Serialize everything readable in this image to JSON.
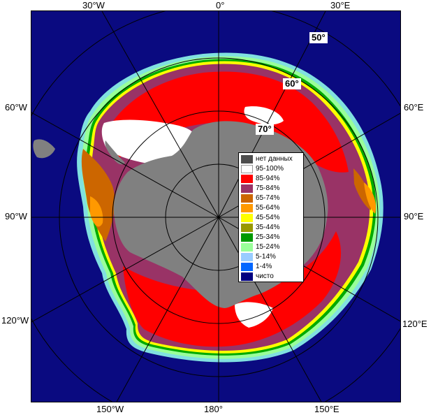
{
  "map": {
    "lon_labels": {
      "w30": "30°W",
      "zero": "0°",
      "e30": "30°E",
      "w60": "60°W",
      "e60": "60°E",
      "w90": "90°W",
      "e90": "90°E",
      "w120": "120°W",
      "e120": "120°E",
      "w150": "150°W",
      "lon180": "180°",
      "e150": "150°E"
    },
    "lat_labels": {
      "lat50": "50°",
      "lat60": "60°",
      "lat70": "70°"
    },
    "colors": {
      "ocean": "#0a0a80",
      "land_gray": "#808080",
      "ice_white": "#ffffff",
      "ice_red": "#ff0000",
      "ice_purple": "#993366",
      "ice_brown": "#cc6600",
      "ice_orange": "#ff9900",
      "edge_yellow": "#ffff00",
      "edge_green": "#00aa00",
      "edge_mint": "#99ff99",
      "edge_cyan": "#80e0e0",
      "grid": "#000000"
    }
  },
  "legend": {
    "items": [
      {
        "label": "нет данных",
        "color": "#4d4d4d"
      },
      {
        "label": "95-100%",
        "color": "#ffffff"
      },
      {
        "label": "85-94%",
        "color": "#ff0000"
      },
      {
        "label": "75-84%",
        "color": "#993366"
      },
      {
        "label": "65-74%",
        "color": "#cc6600"
      },
      {
        "label": "55-64%",
        "color": "#ff9900"
      },
      {
        "label": "45-54%",
        "color": "#ffff00"
      },
      {
        "label": "35-44%",
        "color": "#999900"
      },
      {
        "label": "25-34%",
        "color": "#009900"
      },
      {
        "label": "15-24%",
        "color": "#99ff99"
      },
      {
        "label": "5-14%",
        "color": "#99ccff"
      },
      {
        "label": "1-4%",
        "color": "#0066ff"
      },
      {
        "label": "чисто",
        "color": "#000080"
      }
    ]
  }
}
